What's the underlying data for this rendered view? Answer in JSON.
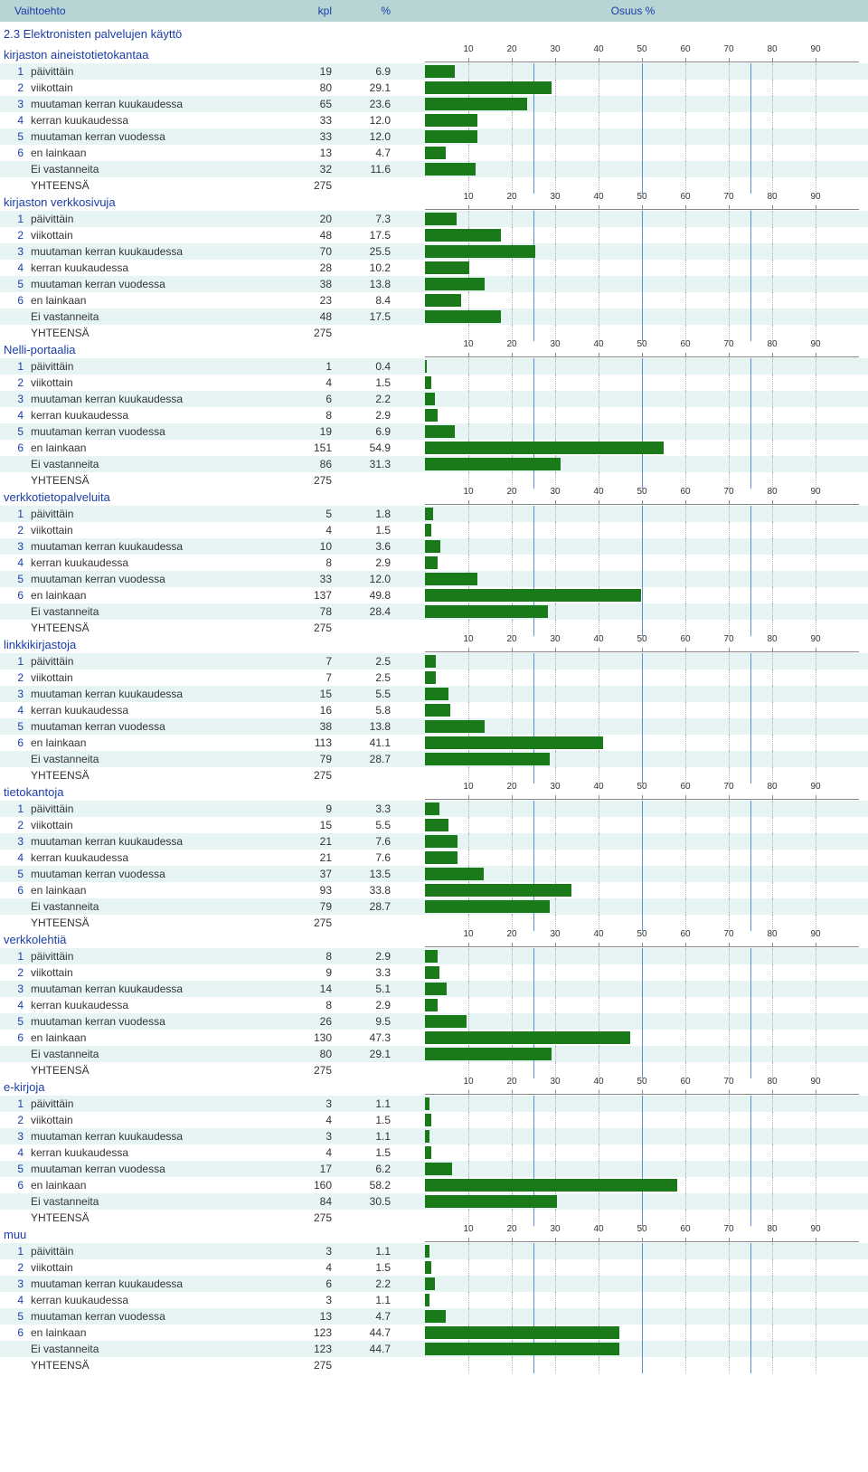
{
  "headers": {
    "option": "Vaihtoehto",
    "count": "kpl",
    "percent": "%",
    "share": "Osuus %"
  },
  "question_title": "2.3 Elektronisten palvelujen käyttö",
  "row_labels_template": [
    "päivittäin",
    "viikottain",
    "muutaman kerran kuukaudessa",
    "kerran kuukaudessa",
    "muutaman kerran vuodessa",
    "en lainkaan"
  ],
  "no_answer_label": "Ei vastanneita",
  "total_label": "YHTEENSÄ",
  "chart_style": {
    "bar_color": "#1a7a1a",
    "grid_color": "#b0b0b0",
    "axis_color": "#888888",
    "mid_tick_color": "#5a8fd6",
    "bg_even": "#e6f4f4",
    "bg_odd": "#ffffff",
    "header_bg": "#b8d4d4",
    "link_color": "#1a3da8",
    "xmax": 100,
    "ticks": [
      10,
      20,
      30,
      40,
      50,
      60,
      70,
      80,
      90
    ],
    "mid_ticks": [
      25,
      50,
      75
    ]
  },
  "groups": [
    {
      "title": "kirjaston aineistotietokantaa",
      "total": 275,
      "rows": [
        {
          "n": "1",
          "label": "päivittäin",
          "kpl": 19,
          "pct": 6.9
        },
        {
          "n": "2",
          "label": "viikottain",
          "kpl": 80,
          "pct": 29.1
        },
        {
          "n": "3",
          "label": "muutaman kerran kuukaudessa",
          "kpl": 65,
          "pct": 23.6
        },
        {
          "n": "4",
          "label": "kerran kuukaudessa",
          "kpl": 33,
          "pct": 12.0
        },
        {
          "n": "5",
          "label": "muutaman kerran vuodessa",
          "kpl": 33,
          "pct": 12.0
        },
        {
          "n": "6",
          "label": "en lainkaan",
          "kpl": 13,
          "pct": 4.7
        },
        {
          "n": "",
          "label": "Ei vastanneita",
          "kpl": 32,
          "pct": 11.6
        }
      ]
    },
    {
      "title": "kirjaston verkkosivuja",
      "total": 275,
      "rows": [
        {
          "n": "1",
          "label": "päivittäin",
          "kpl": 20,
          "pct": 7.3
        },
        {
          "n": "2",
          "label": "viikottain",
          "kpl": 48,
          "pct": 17.5
        },
        {
          "n": "3",
          "label": "muutaman kerran kuukaudessa",
          "kpl": 70,
          "pct": 25.5
        },
        {
          "n": "4",
          "label": "kerran kuukaudessa",
          "kpl": 28,
          "pct": 10.2
        },
        {
          "n": "5",
          "label": "muutaman kerran vuodessa",
          "kpl": 38,
          "pct": 13.8
        },
        {
          "n": "6",
          "label": "en lainkaan",
          "kpl": 23,
          "pct": 8.4
        },
        {
          "n": "",
          "label": "Ei vastanneita",
          "kpl": 48,
          "pct": 17.5
        }
      ]
    },
    {
      "title": "Nelli-portaalia",
      "total": 275,
      "rows": [
        {
          "n": "1",
          "label": "päivittäin",
          "kpl": 1,
          "pct": 0.4
        },
        {
          "n": "2",
          "label": "viikottain",
          "kpl": 4,
          "pct": 1.5
        },
        {
          "n": "3",
          "label": "muutaman kerran kuukaudessa",
          "kpl": 6,
          "pct": 2.2
        },
        {
          "n": "4",
          "label": "kerran kuukaudessa",
          "kpl": 8,
          "pct": 2.9
        },
        {
          "n": "5",
          "label": "muutaman kerran vuodessa",
          "kpl": 19,
          "pct": 6.9
        },
        {
          "n": "6",
          "label": "en lainkaan",
          "kpl": 151,
          "pct": 54.9
        },
        {
          "n": "",
          "label": "Ei vastanneita",
          "kpl": 86,
          "pct": 31.3
        }
      ]
    },
    {
      "title": "verkkotietopalveluita",
      "total": 275,
      "rows": [
        {
          "n": "1",
          "label": "päivittäin",
          "kpl": 5,
          "pct": 1.8
        },
        {
          "n": "2",
          "label": "viikottain",
          "kpl": 4,
          "pct": 1.5
        },
        {
          "n": "3",
          "label": "muutaman kerran kuukaudessa",
          "kpl": 10,
          "pct": 3.6
        },
        {
          "n": "4",
          "label": "kerran kuukaudessa",
          "kpl": 8,
          "pct": 2.9
        },
        {
          "n": "5",
          "label": "muutaman kerran vuodessa",
          "kpl": 33,
          "pct": 12.0
        },
        {
          "n": "6",
          "label": "en lainkaan",
          "kpl": 137,
          "pct": 49.8
        },
        {
          "n": "",
          "label": "Ei vastanneita",
          "kpl": 78,
          "pct": 28.4
        }
      ]
    },
    {
      "title": "linkkikirjastoja",
      "total": 275,
      "rows": [
        {
          "n": "1",
          "label": "päivittäin",
          "kpl": 7,
          "pct": 2.5
        },
        {
          "n": "2",
          "label": "viikottain",
          "kpl": 7,
          "pct": 2.5
        },
        {
          "n": "3",
          "label": "muutaman kerran kuukaudessa",
          "kpl": 15,
          "pct": 5.5
        },
        {
          "n": "4",
          "label": "kerran kuukaudessa",
          "kpl": 16,
          "pct": 5.8
        },
        {
          "n": "5",
          "label": "muutaman kerran vuodessa",
          "kpl": 38,
          "pct": 13.8
        },
        {
          "n": "6",
          "label": "en lainkaan",
          "kpl": 113,
          "pct": 41.1
        },
        {
          "n": "",
          "label": "Ei vastanneita",
          "kpl": 79,
          "pct": 28.7
        }
      ]
    },
    {
      "title": "tietokantoja",
      "total": 275,
      "rows": [
        {
          "n": "1",
          "label": "päivittäin",
          "kpl": 9,
          "pct": 3.3
        },
        {
          "n": "2",
          "label": "viikottain",
          "kpl": 15,
          "pct": 5.5
        },
        {
          "n": "3",
          "label": "muutaman kerran kuukaudessa",
          "kpl": 21,
          "pct": 7.6
        },
        {
          "n": "4",
          "label": "kerran kuukaudessa",
          "kpl": 21,
          "pct": 7.6
        },
        {
          "n": "5",
          "label": "muutaman kerran vuodessa",
          "kpl": 37,
          "pct": 13.5
        },
        {
          "n": "6",
          "label": "en lainkaan",
          "kpl": 93,
          "pct": 33.8
        },
        {
          "n": "",
          "label": "Ei vastanneita",
          "kpl": 79,
          "pct": 28.7
        }
      ]
    },
    {
      "title": "verkkolehtiä",
      "total": 275,
      "rows": [
        {
          "n": "1",
          "label": "päivittäin",
          "kpl": 8,
          "pct": 2.9
        },
        {
          "n": "2",
          "label": "viikottain",
          "kpl": 9,
          "pct": 3.3
        },
        {
          "n": "3",
          "label": "muutaman kerran kuukaudessa",
          "kpl": 14,
          "pct": 5.1
        },
        {
          "n": "4",
          "label": "kerran kuukaudessa",
          "kpl": 8,
          "pct": 2.9
        },
        {
          "n": "5",
          "label": "muutaman kerran vuodessa",
          "kpl": 26,
          "pct": 9.5
        },
        {
          "n": "6",
          "label": "en lainkaan",
          "kpl": 130,
          "pct": 47.3
        },
        {
          "n": "",
          "label": "Ei vastanneita",
          "kpl": 80,
          "pct": 29.1
        }
      ]
    },
    {
      "title": "e-kirjoja",
      "total": 275,
      "rows": [
        {
          "n": "1",
          "label": "päivittäin",
          "kpl": 3,
          "pct": 1.1
        },
        {
          "n": "2",
          "label": "viikottain",
          "kpl": 4,
          "pct": 1.5
        },
        {
          "n": "3",
          "label": "muutaman kerran kuukaudessa",
          "kpl": 3,
          "pct": 1.1
        },
        {
          "n": "4",
          "label": "kerran kuukaudessa",
          "kpl": 4,
          "pct": 1.5
        },
        {
          "n": "5",
          "label": "muutaman kerran vuodessa",
          "kpl": 17,
          "pct": 6.2
        },
        {
          "n": "6",
          "label": "en lainkaan",
          "kpl": 160,
          "pct": 58.2
        },
        {
          "n": "",
          "label": "Ei vastanneita",
          "kpl": 84,
          "pct": 30.5
        }
      ]
    },
    {
      "title": "muu",
      "total": 275,
      "rows": [
        {
          "n": "1",
          "label": "päivittäin",
          "kpl": 3,
          "pct": 1.1
        },
        {
          "n": "2",
          "label": "viikottain",
          "kpl": 4,
          "pct": 1.5
        },
        {
          "n": "3",
          "label": "muutaman kerran kuukaudessa",
          "kpl": 6,
          "pct": 2.2
        },
        {
          "n": "4",
          "label": "kerran kuukaudessa",
          "kpl": 3,
          "pct": 1.1
        },
        {
          "n": "5",
          "label": "muutaman kerran vuodessa",
          "kpl": 13,
          "pct": 4.7
        },
        {
          "n": "6",
          "label": "en lainkaan",
          "kpl": 123,
          "pct": 44.7
        },
        {
          "n": "",
          "label": "Ei vastanneita",
          "kpl": 123,
          "pct": 44.7
        }
      ]
    }
  ]
}
